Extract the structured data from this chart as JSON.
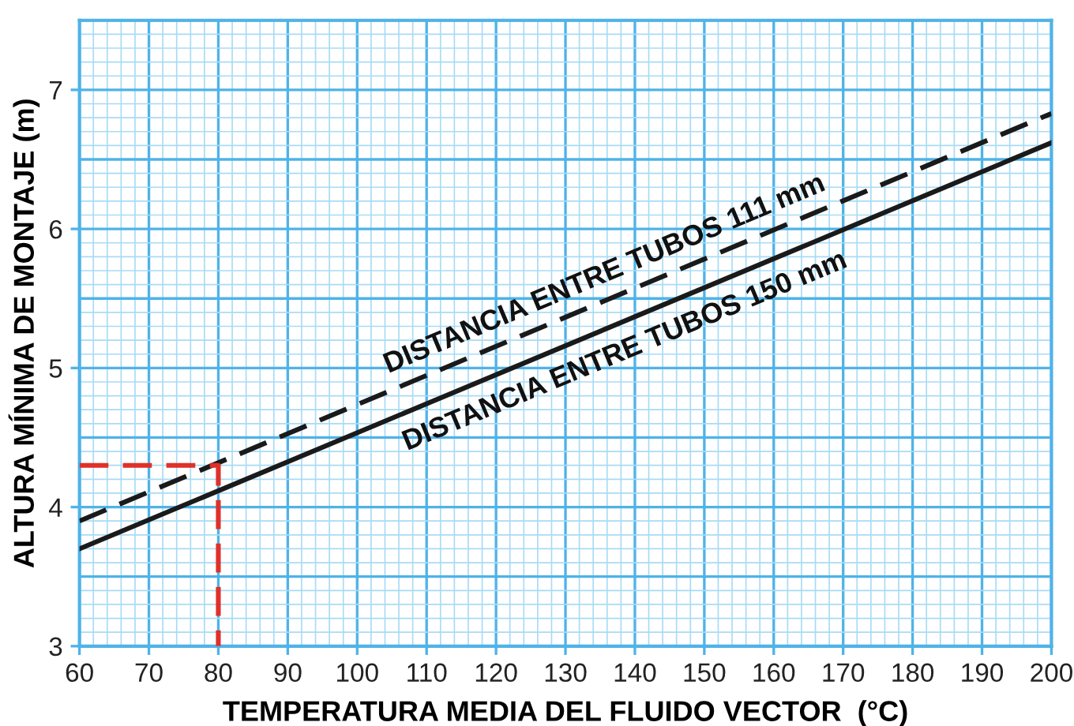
{
  "chart_data": {
    "type": "line",
    "xlabel": "TEMPERATURA MEDIA DEL FLUIDO VECTOR  (°C)",
    "ylabel": "ALTURA MÍNIMA DE MONTAJE (m)",
    "xlim": [
      60,
      200
    ],
    "ylim": [
      3,
      7.5
    ],
    "xticks": [
      60,
      {
        "value": 62,
        "label": null
      },
      {
        "value": 64,
        "label": null
      },
      {
        "value": 66,
        "label": null
      },
      {
        "value": 68,
        "label": null
      },
      70,
      {
        "value": 72,
        "label": null
      },
      {
        "value": 74,
        "label": null
      },
      {
        "value": 76,
        "label": null
      },
      {
        "value": 78,
        "label": null
      },
      80,
      {
        "value": 82,
        "label": null
      },
      {
        "value": 84,
        "label": null
      },
      {
        "value": 86,
        "label": null
      },
      {
        "value": 88,
        "label": null
      },
      90,
      {
        "value": 92,
        "label": null
      },
      {
        "value": 94,
        "label": null
      },
      {
        "value": 96,
        "label": null
      },
      {
        "value": 98,
        "label": null
      },
      100,
      {
        "value": 102,
        "label": null
      },
      {
        "value": 104,
        "label": null
      },
      {
        "value": 106,
        "label": null
      },
      {
        "value": 108,
        "label": null
      },
      110,
      {
        "value": 112,
        "label": null
      },
      {
        "value": 114,
        "label": null
      },
      {
        "value": 116,
        "label": null
      },
      {
        "value": 118,
        "label": null
      },
      120,
      {
        "value": 122,
        "label": null
      },
      {
        "value": 124,
        "label": null
      },
      {
        "value": 126,
        "label": null
      },
      {
        "value": 128,
        "label": null
      },
      130,
      {
        "value": 132,
        "label": null
      },
      {
        "value": 134,
        "label": null
      },
      {
        "value": 136,
        "label": null
      },
      {
        "value": 138,
        "label": null
      },
      140,
      {
        "value": 142,
        "label": null
      },
      {
        "value": 144,
        "label": null
      },
      {
        "value": 146,
        "label": null
      },
      {
        "value": 148,
        "label": null
      },
      150,
      {
        "value": 152,
        "label": null
      },
      {
        "value": 154,
        "label": null
      },
      {
        "value": 156,
        "label": null
      },
      {
        "value": 158,
        "label": null
      },
      160,
      {
        "value": 162,
        "label": null
      },
      {
        "value": 164,
        "label": null
      },
      {
        "value": 166,
        "label": null
      },
      {
        "value": 168,
        "label": null
      },
      170,
      {
        "value": 172,
        "label": null
      },
      {
        "value": 174,
        "label": null
      },
      {
        "value": 176,
        "label": null
      },
      {
        "value": 178,
        "label": null
      },
      180,
      {
        "value": 182,
        "label": null
      },
      {
        "value": 184,
        "label": null
      },
      {
        "value": 186,
        "label": null
      },
      {
        "value": 188,
        "label": null
      },
      190,
      {
        "value": 192,
        "label": null
      },
      {
        "value": 194,
        "label": null
      },
      {
        "value": 196,
        "label": null
      },
      {
        "value": 198,
        "label": null
      },
      200
    ],
    "yticks": [
      3,
      {
        "value": 3.1,
        "label": null
      },
      {
        "value": 3.2,
        "label": null
      },
      {
        "value": 3.3,
        "label": null
      },
      {
        "value": 3.4,
        "label": null
      },
      {
        "value": 3.5,
        "label": null
      },
      {
        "value": 3.6,
        "label": null
      },
      {
        "value": 3.7,
        "label": null
      },
      {
        "value": 3.8,
        "label": null
      },
      {
        "value": 3.9,
        "label": null
      },
      4,
      {
        "value": 4.1,
        "label": null
      },
      {
        "value": 4.2,
        "label": null
      },
      {
        "value": 4.3,
        "label": null
      },
      {
        "value": 4.4,
        "label": null
      },
      {
        "value": 4.5,
        "label": null
      },
      {
        "value": 4.6,
        "label": null
      },
      {
        "value": 4.7,
        "label": null
      },
      {
        "value": 4.8,
        "label": null
      },
      {
        "value": 4.9,
        "label": null
      },
      5,
      {
        "value": 5.1,
        "label": null
      },
      {
        "value": 5.2,
        "label": null
      },
      {
        "value": 5.3,
        "label": null
      },
      {
        "value": 5.4,
        "label": null
      },
      {
        "value": 5.5,
        "label": null
      },
      {
        "value": 5.6,
        "label": null
      },
      {
        "value": 5.7,
        "label": null
      },
      {
        "value": 5.8,
        "label": null
      },
      {
        "value": 5.9,
        "label": null
      },
      6,
      {
        "value": 6.1,
        "label": null
      },
      {
        "value": 6.2,
        "label": null
      },
      {
        "value": 6.3,
        "label": null
      },
      {
        "value": 6.4,
        "label": null
      },
      {
        "value": 6.5,
        "label": null
      },
      {
        "value": 6.6,
        "label": null
      },
      {
        "value": 6.7,
        "label": null
      },
      {
        "value": 6.8,
        "label": null
      },
      {
        "value": 6.9,
        "label": null
      },
      7,
      {
        "value": 7.1,
        "label": null
      },
      {
        "value": 7.2,
        "label": null
      },
      {
        "value": 7.3,
        "label": null
      },
      {
        "value": 7.4,
        "label": null
      },
      {
        "value": 7.5,
        "label": null
      }
    ],
    "grid": true,
    "legend": false,
    "series": [
      {
        "name": "DISTANCIA ENTRE TUBOS 111 mm",
        "color": "#1a1a1a",
        "line_style": "dashed",
        "x": [
          60,
          200
        ],
        "values": [
          3.9,
          6.83
        ]
      },
      {
        "name": "DISTANCIA ENTRE TUBOS 150 mm",
        "color": "#1a1a1a",
        "line_style": "solid",
        "x": [
          60,
          200
        ],
        "values": [
          3.7,
          6.62
        ]
      },
      {
        "color": "#e0302a",
        "line_style": "dashed",
        "x": [
          60,
          80,
          80
        ],
        "values": [
          4.3,
          4.3,
          3
        ]
      }
    ]
  }
}
